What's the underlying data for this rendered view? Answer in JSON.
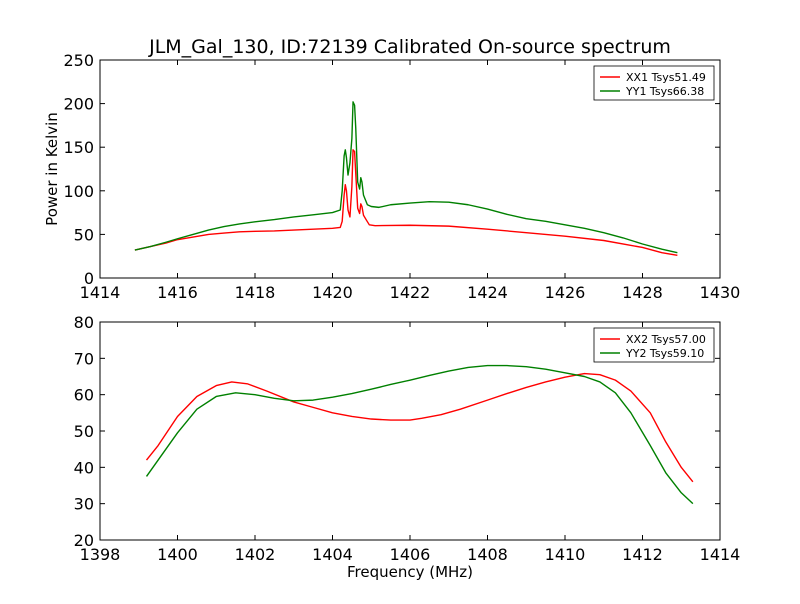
{
  "figure": {
    "title": "JLM_Gal_130, ID:72139 Calibrated On-source spectrum",
    "xlabel": "Frequency (MHz)"
  },
  "chart_data": [
    {
      "type": "line",
      "ylabel": "Power in Kelvin",
      "xlim": [
        1414,
        1430
      ],
      "ylim": [
        0,
        250
      ],
      "xticks": [
        "1414",
        "1416",
        "1418",
        "1420",
        "1422",
        "1424",
        "1426",
        "1428",
        "1430"
      ],
      "yticks": [
        "0",
        "50",
        "100",
        "150",
        "200",
        "250"
      ],
      "grid": false,
      "legend_position": "top-right",
      "series": [
        {
          "name": "XX1 Tsys51.49",
          "color": "#ff0000",
          "points": [
            [
              1414.9,
              32
            ],
            [
              1415.3,
              36
            ],
            [
              1415.7,
              40
            ],
            [
              1416,
              44
            ],
            [
              1416.4,
              47
            ],
            [
              1416.8,
              50
            ],
            [
              1417.2,
              51.5
            ],
            [
              1417.6,
              53
            ],
            [
              1418,
              53.5
            ],
            [
              1418.5,
              54
            ],
            [
              1419,
              55
            ],
            [
              1419.5,
              56
            ],
            [
              1420,
              57
            ],
            [
              1420.2,
              58
            ],
            [
              1420.25,
              65
            ],
            [
              1420.3,
              95
            ],
            [
              1420.33,
              107
            ],
            [
              1420.36,
              100
            ],
            [
              1420.4,
              78
            ],
            [
              1420.45,
              70
            ],
            [
              1420.5,
              105
            ],
            [
              1420.53,
              147
            ],
            [
              1420.57,
              145
            ],
            [
              1420.6,
              120
            ],
            [
              1420.65,
              80
            ],
            [
              1420.7,
              74
            ],
            [
              1420.73,
              85
            ],
            [
              1420.76,
              82
            ],
            [
              1420.8,
              72
            ],
            [
              1420.88,
              66
            ],
            [
              1420.95,
              61
            ],
            [
              1421.1,
              60
            ],
            [
              1422,
              60.5
            ],
            [
              1423,
              59.5
            ],
            [
              1424,
              56
            ],
            [
              1425,
              52
            ],
            [
              1426,
              48
            ],
            [
              1427,
              43
            ],
            [
              1428,
              35
            ],
            [
              1428.5,
              29
            ],
            [
              1428.9,
              26
            ]
          ]
        },
        {
          "name": "YY1 Tsys66.38",
          "color": "#008000",
          "points": [
            [
              1414.9,
              32
            ],
            [
              1415.3,
              36
            ],
            [
              1415.7,
              41
            ],
            [
              1416,
              45
            ],
            [
              1416.4,
              50
            ],
            [
              1416.8,
              55
            ],
            [
              1417.2,
              59
            ],
            [
              1417.6,
              62
            ],
            [
              1418,
              64.5
            ],
            [
              1418.5,
              67
            ],
            [
              1419,
              70
            ],
            [
              1419.5,
              72.5
            ],
            [
              1420,
              75
            ],
            [
              1420.2,
              78
            ],
            [
              1420.25,
              100
            ],
            [
              1420.3,
              140
            ],
            [
              1420.33,
              147
            ],
            [
              1420.36,
              138
            ],
            [
              1420.4,
              118
            ],
            [
              1420.45,
              132
            ],
            [
              1420.5,
              160
            ],
            [
              1420.53,
              202
            ],
            [
              1420.57,
              198
            ],
            [
              1420.6,
              172
            ],
            [
              1420.65,
              110
            ],
            [
              1420.7,
              102
            ],
            [
              1420.73,
              115
            ],
            [
              1420.76,
              110
            ],
            [
              1420.8,
              95
            ],
            [
              1420.9,
              84
            ],
            [
              1421,
              82
            ],
            [
              1421.2,
              81
            ],
            [
              1421.5,
              84
            ],
            [
              1422,
              86
            ],
            [
              1422.5,
              87.5
            ],
            [
              1423,
              87
            ],
            [
              1423.5,
              84
            ],
            [
              1424,
              79
            ],
            [
              1424.5,
              73
            ],
            [
              1425,
              68
            ],
            [
              1425.5,
              65
            ],
            [
              1426,
              61
            ],
            [
              1426.5,
              57
            ],
            [
              1427,
              52
            ],
            [
              1427.5,
              46
            ],
            [
              1428,
              39
            ],
            [
              1428.5,
              33
            ],
            [
              1428.9,
              29
            ]
          ]
        }
      ]
    },
    {
      "type": "line",
      "ylabel": "",
      "xlim": [
        1398,
        1414
      ],
      "ylim": [
        20,
        80
      ],
      "xticks": [
        "1398",
        "1400",
        "1402",
        "1404",
        "1406",
        "1408",
        "1410",
        "1412",
        "1414"
      ],
      "yticks": [
        "20",
        "30",
        "40",
        "50",
        "60",
        "70",
        "80"
      ],
      "grid": false,
      "legend_position": "top-right",
      "series": [
        {
          "name": "XX2 Tsys57.00",
          "color": "#ff0000",
          "points": [
            [
              1399.2,
              42
            ],
            [
              1399.5,
              46
            ],
            [
              1400,
              54
            ],
            [
              1400.5,
              59.5
            ],
            [
              1401,
              62.5
            ],
            [
              1401.4,
              63.5
            ],
            [
              1401.8,
              63
            ],
            [
              1402.3,
              61
            ],
            [
              1403,
              58
            ],
            [
              1403.5,
              56.5
            ],
            [
              1404,
              55
            ],
            [
              1404.5,
              54
            ],
            [
              1405,
              53.3
            ],
            [
              1405.5,
              53
            ],
            [
              1406,
              53
            ],
            [
              1406.3,
              53.5
            ],
            [
              1406.8,
              54.5
            ],
            [
              1407.3,
              56
            ],
            [
              1408,
              58.5
            ],
            [
              1408.5,
              60.3
            ],
            [
              1409,
              62
            ],
            [
              1409.5,
              63.5
            ],
            [
              1410,
              64.8
            ],
            [
              1410.5,
              65.8
            ],
            [
              1410.9,
              65.5
            ],
            [
              1411.3,
              64
            ],
            [
              1411.7,
              61
            ],
            [
              1412.2,
              55
            ],
            [
              1412.6,
              47
            ],
            [
              1413,
              40
            ],
            [
              1413.3,
              36
            ]
          ]
        },
        {
          "name": "YY2 Tsys59.10",
          "color": "#008000",
          "points": [
            [
              1399.2,
              37.5
            ],
            [
              1399.5,
              42
            ],
            [
              1400,
              49.5
            ],
            [
              1400.5,
              56
            ],
            [
              1401,
              59.5
            ],
            [
              1401.5,
              60.5
            ],
            [
              1402,
              60
            ],
            [
              1402.5,
              59
            ],
            [
              1403,
              58.3
            ],
            [
              1403.5,
              58.5
            ],
            [
              1404,
              59.3
            ],
            [
              1404.5,
              60.3
            ],
            [
              1405,
              61.5
            ],
            [
              1405.5,
              62.8
            ],
            [
              1406,
              64
            ],
            [
              1406.5,
              65.3
            ],
            [
              1407,
              66.5
            ],
            [
              1407.5,
              67.5
            ],
            [
              1408,
              68
            ],
            [
              1408.5,
              68
            ],
            [
              1409,
              67.7
            ],
            [
              1409.5,
              67
            ],
            [
              1410,
              66
            ],
            [
              1410.5,
              65
            ],
            [
              1410.9,
              63.5
            ],
            [
              1411.3,
              60.5
            ],
            [
              1411.7,
              55
            ],
            [
              1412.2,
              46
            ],
            [
              1412.6,
              38.5
            ],
            [
              1413,
              33
            ],
            [
              1413.3,
              30
            ]
          ]
        }
      ]
    }
  ]
}
